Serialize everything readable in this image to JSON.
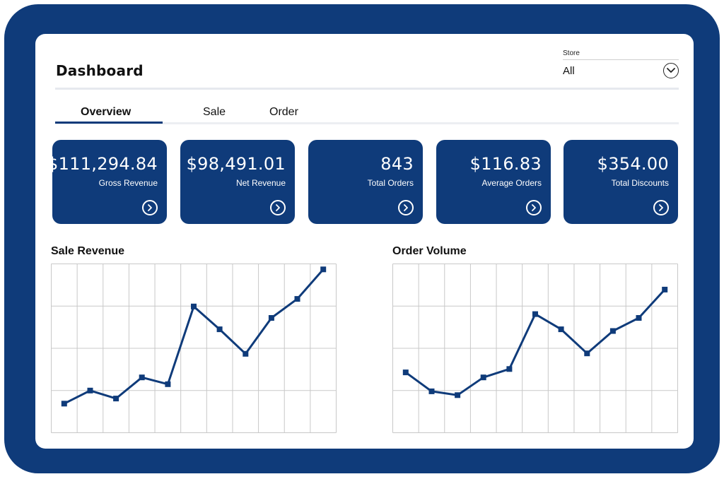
{
  "header": {
    "title": "Dashboard"
  },
  "store": {
    "label": "Store",
    "value": "All",
    "icon": "chevron-down-icon"
  },
  "tabs": [
    {
      "label": "Overview",
      "active": true
    },
    {
      "label": "Sale",
      "active": false
    },
    {
      "label": "Order",
      "active": false
    }
  ],
  "cards": [
    {
      "value": "$111,294.84",
      "label": "Gross Revenue",
      "icon": "chevron-right-circle-icon"
    },
    {
      "value": "$98,491.01",
      "label": "Net Revenue",
      "icon": "chevron-right-circle-icon"
    },
    {
      "value": "843",
      "label": "Total Orders",
      "icon": "chevron-right-circle-icon"
    },
    {
      "value": "$116.83",
      "label": "Average Orders",
      "icon": "chevron-right-circle-icon"
    },
    {
      "value": "$354.00",
      "label": "Total Discounts",
      "icon": "chevron-right-circle-icon"
    }
  ],
  "colors": {
    "brand": "#0f3b7a",
    "grid": "#c8c8c8",
    "background": "#ffffff"
  },
  "chart_data": [
    {
      "type": "line",
      "title": "Sale Revenue",
      "x": [
        1,
        2,
        3,
        4,
        5,
        6,
        7,
        8,
        9,
        10,
        11
      ],
      "values": [
        0.69,
        1.0,
        0.81,
        1.31,
        1.15,
        2.99,
        2.45,
        1.87,
        2.72,
        3.17,
        3.87
      ],
      "xlim": [
        0.5,
        11.5
      ],
      "ylim": [
        0,
        4
      ],
      "grid": true,
      "color": "#0f3b7a"
    },
    {
      "type": "line",
      "title": "Order Volume",
      "x": [
        1,
        2,
        3,
        4,
        5,
        6,
        7,
        8,
        9,
        10,
        11
      ],
      "values": [
        1.43,
        0.98,
        0.89,
        1.31,
        1.51,
        2.81,
        2.45,
        1.88,
        2.41,
        2.72,
        3.39
      ],
      "xlim": [
        0.5,
        11.5
      ],
      "ylim": [
        0,
        4
      ],
      "grid": true,
      "color": "#0f3b7a"
    }
  ]
}
